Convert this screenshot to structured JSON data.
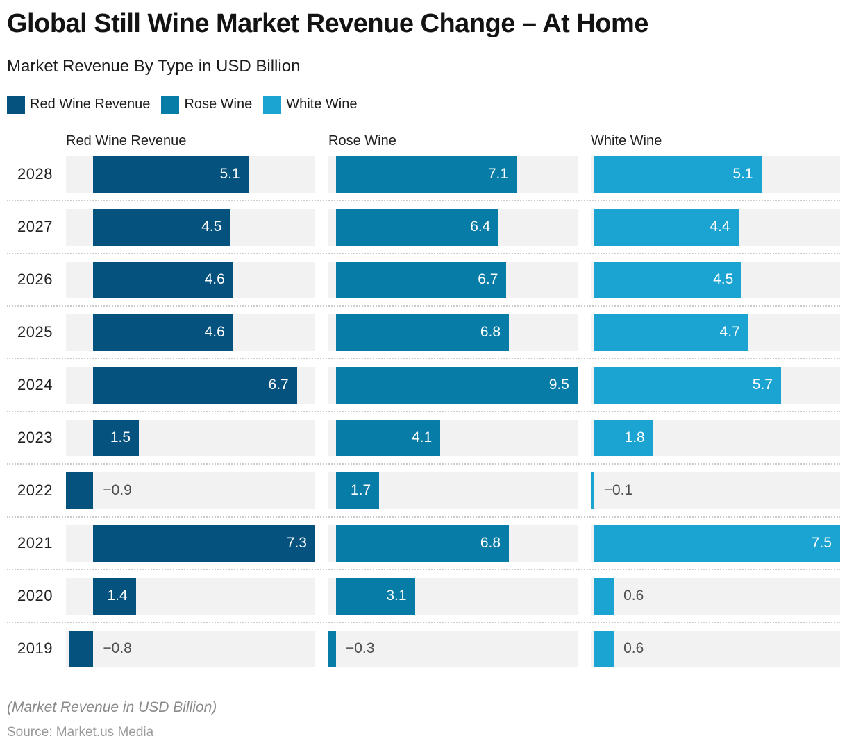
{
  "title": "Global Still Wine Market Revenue Change – At Home",
  "subtitle": "Market Revenue By Type in USD Billion",
  "footer": {
    "note": "(Market Revenue in USD Billion)",
    "source": "Source: Market.us Media"
  },
  "colors": {
    "red_wine": "#05527E",
    "rose_wine": "#077CA6",
    "white_wine": "#1BA3D2",
    "track": "#F2F2F2",
    "negative_label": "#4D4D4D",
    "separator": "#CBCBCB"
  },
  "chart_data": {
    "type": "bar",
    "orientation": "horizontal",
    "grid": "off",
    "legend_position": "top",
    "categories": [
      "2028",
      "2027",
      "2026",
      "2025",
      "2024",
      "2023",
      "2022",
      "2021",
      "2020",
      "2019"
    ],
    "series": [
      {
        "name": "Red Wine Revenue",
        "color": "#05527E",
        "xlim": [
          -0.9,
          7.3
        ],
        "values": [
          5.1,
          4.5,
          4.6,
          4.6,
          6.7,
          1.5,
          -0.9,
          7.3,
          1.4,
          -0.8
        ]
      },
      {
        "name": "Rose Wine",
        "color": "#077CA6",
        "xlim": [
          -0.3,
          9.5
        ],
        "values": [
          7.1,
          6.4,
          6.7,
          6.8,
          9.5,
          4.1,
          1.7,
          6.8,
          3.1,
          -0.3
        ]
      },
      {
        "name": "White Wine",
        "color": "#1BA3D2",
        "xlim": [
          -0.1,
          7.5
        ],
        "values": [
          5.1,
          4.4,
          4.5,
          4.7,
          5.7,
          1.8,
          -0.1,
          7.5,
          0.6,
          0.6
        ]
      }
    ]
  }
}
